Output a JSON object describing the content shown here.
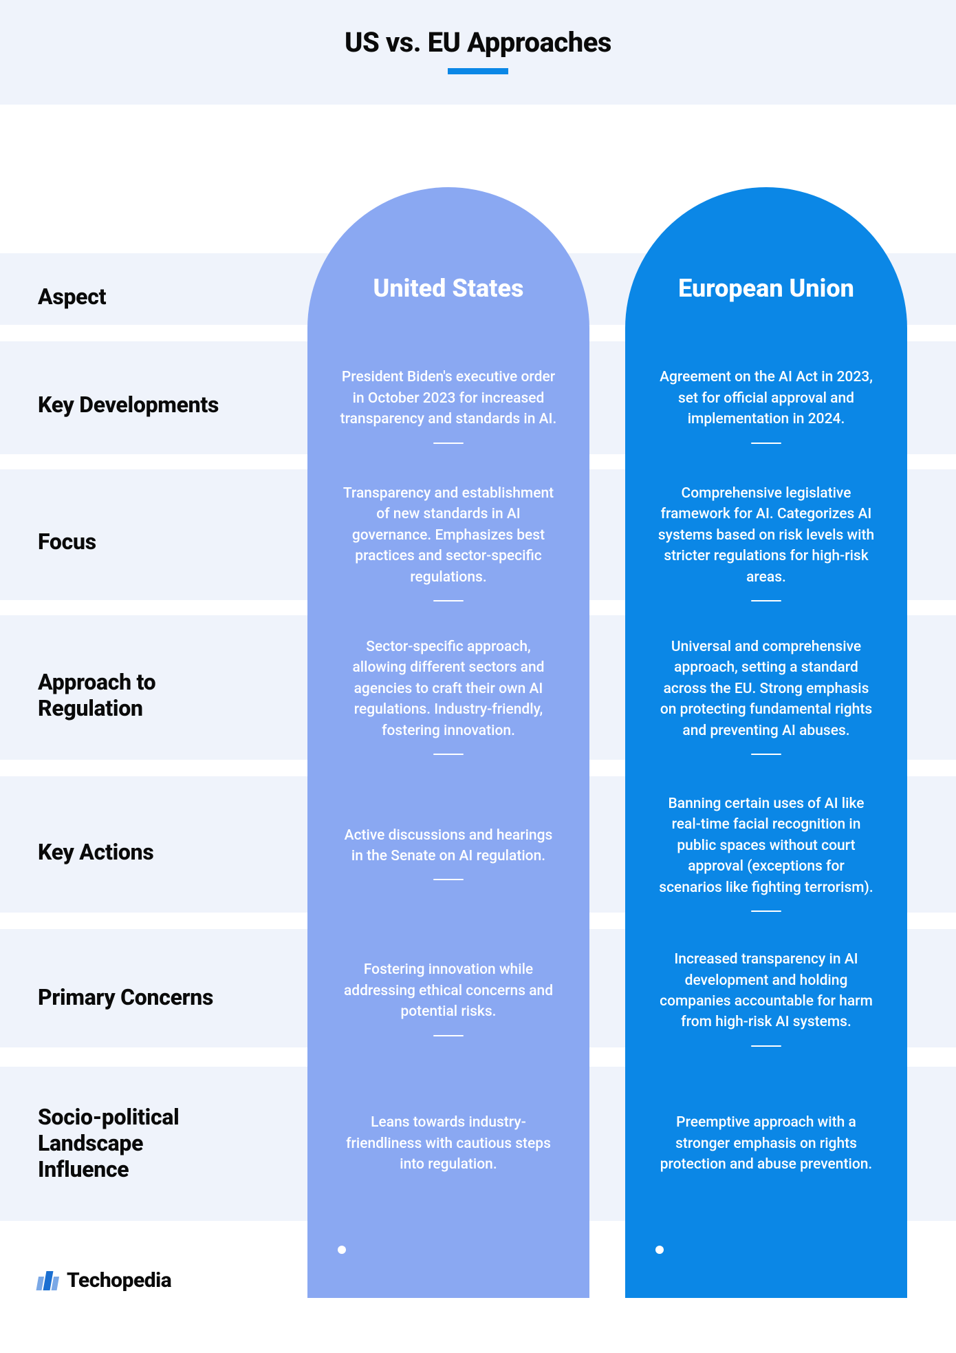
{
  "header": {
    "title": "US vs. EU Approaches",
    "underline_color": "#0b87e6"
  },
  "layout": {
    "stripe_color": "#eff3fb",
    "label_fontsize": 32,
    "stripe_rows": [
      {
        "top_gap": 216,
        "stripe_height": 104,
        "gap_after": 24
      },
      {
        "top_gap": 0,
        "stripe_height": 164,
        "gap_after": 22
      },
      {
        "top_gap": 0,
        "stripe_height": 190,
        "gap_after": 22
      },
      {
        "top_gap": 0,
        "stripe_height": 210,
        "gap_after": 24
      },
      {
        "top_gap": 0,
        "stripe_height": 198,
        "gap_after": 24
      },
      {
        "top_gap": 0,
        "stripe_height": 172,
        "gap_after": 28
      },
      {
        "top_gap": 0,
        "stripe_height": 224,
        "gap_after": 0
      }
    ]
  },
  "columns": {
    "aspect_label": "Aspect",
    "us": {
      "header": "United States",
      "bg_color": "#8aa8f2",
      "text_color": "#ffffff"
    },
    "eu": {
      "header": "European Union",
      "bg_color": "#0b87e6",
      "text_color": "#ffffff"
    }
  },
  "rows": [
    {
      "label": "Key Developments",
      "us": "President Biden's executive order in October 2023 for increased transparency and standards in AI.",
      "eu": "Agreement on the AI Act in 2023, set for official approval and implementation in 2024."
    },
    {
      "label": "Focus",
      "us": "Transparency and establishment of new standards in AI governance. Emphasizes best practices and sector-specific regulations.",
      "eu": "Comprehensive legislative framework for AI. Categorizes AI systems based on risk levels with stricter regulations for high-risk areas."
    },
    {
      "label": "Approach to Regulation",
      "us": "Sector-specific approach, allowing different sectors and agencies to craft their own AI regulations. Industry-friendly, fostering innovation.",
      "eu": "Universal and comprehensive approach, setting a standard across the EU. Strong emphasis on protecting fundamental rights and preventing AI abuses."
    },
    {
      "label": "Key Actions",
      "us": "Active discussions and hearings in the Senate on AI regulation.",
      "eu": "Banning certain uses of AI like real-time facial recognition in public spaces without court approval (exceptions for scenarios like fighting terrorism)."
    },
    {
      "label": "Primary Concerns",
      "us": "Fostering innovation while addressing ethical concerns and potential risks.",
      "eu": "Increased transparency in AI development and holding companies accountable for harm from high-risk AI systems."
    },
    {
      "label": "Socio-political Landscape Influence",
      "us": "Leans towards industry-friendliness with cautious steps into regulation.",
      "eu": "Preemptive approach with a stronger emphasis on rights protection and abuse prevention."
    }
  ],
  "footer": {
    "brand": "Techopedia"
  }
}
